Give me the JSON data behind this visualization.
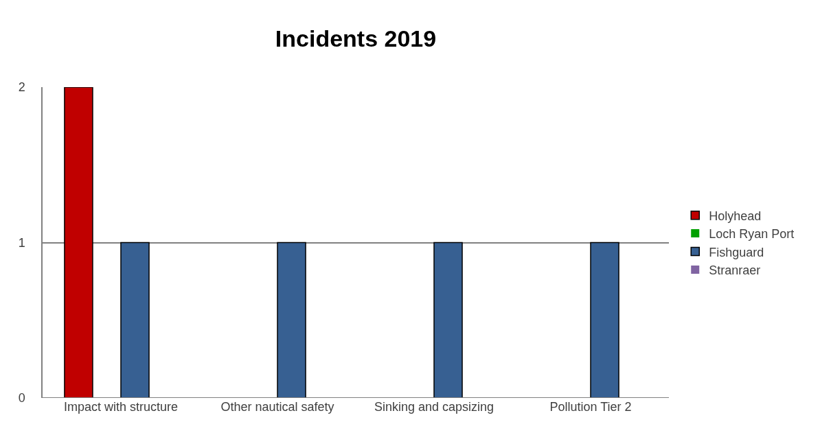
{
  "chart_data": {
    "type": "bar",
    "title": "Incidents 2019",
    "categories": [
      "Impact with structure",
      "Other nautical safety",
      "Sinking and capsizing",
      "Pollution Tier 2"
    ],
    "series": [
      {
        "name": "Holyhead",
        "color": "#c00000",
        "values": [
          2,
          0,
          0,
          0
        ]
      },
      {
        "name": "Loch Ryan Port",
        "color": "#00a000",
        "values": [
          0,
          0,
          0,
          0
        ]
      },
      {
        "name": "Fishguard",
        "color": "#376092",
        "values": [
          1,
          1,
          1,
          1
        ]
      },
      {
        "name": "Stranraer",
        "color": "#8064a2",
        "values": [
          0,
          0,
          0,
          0
        ]
      }
    ],
    "ylim": [
      0,
      2
    ],
    "yticks": [
      0,
      1,
      2
    ],
    "grid": "y",
    "legend": "right"
  }
}
